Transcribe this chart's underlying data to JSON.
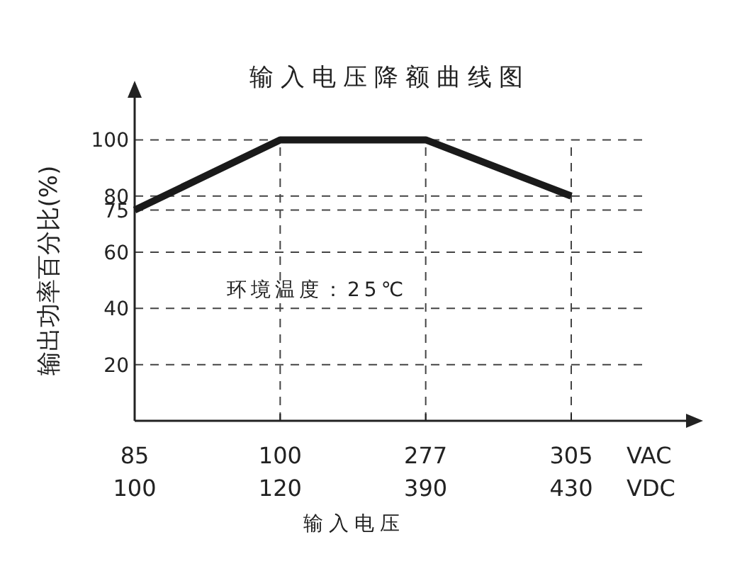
{
  "chart_data": {
    "type": "line",
    "title": "输入电压降额曲线图",
    "xlabel": "输入电压",
    "ylabel": "输出功率百分比(%)",
    "categories": [
      "85",
      "100",
      "277",
      "305"
    ],
    "series": [
      {
        "color": "#1a1a1a",
        "values": [
          75,
          100,
          100,
          80
        ]
      }
    ],
    "ylim": [
      0,
      117
    ],
    "yticks": [
      20,
      40,
      60,
      75,
      80,
      100
    ],
    "grid": true,
    "marker": "none",
    "line_style": "solid",
    "annotations": [
      "环境温度：25℃",
      "VAC",
      "VDC",
      "100",
      "120",
      "390",
      "430"
    ]
  }
}
